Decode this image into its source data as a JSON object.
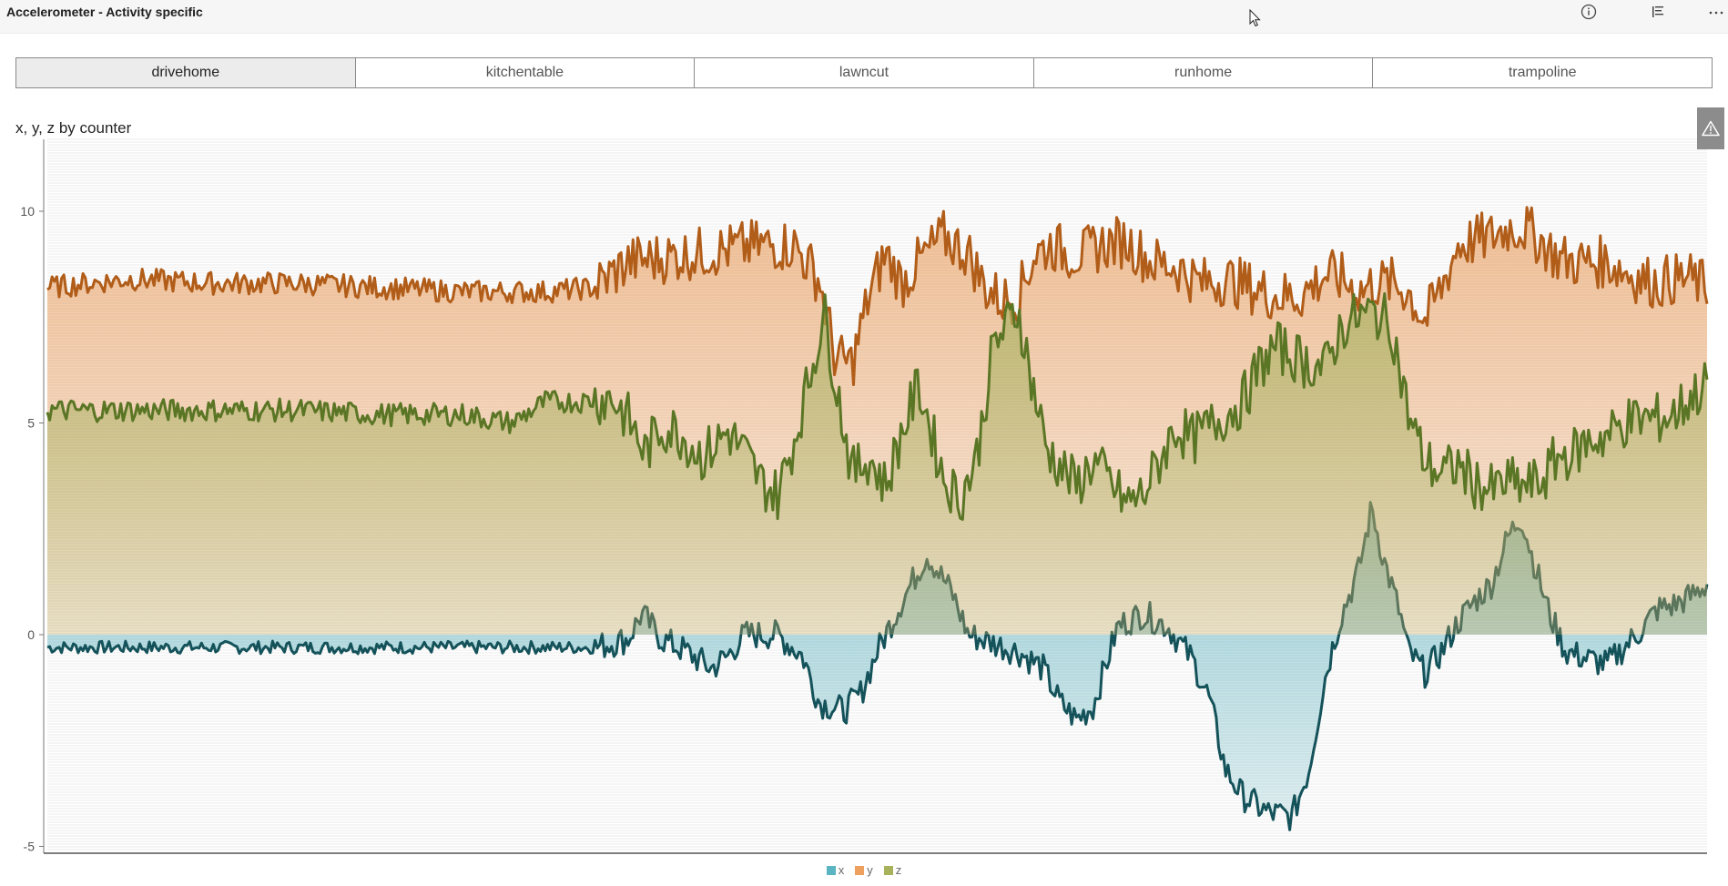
{
  "header": {
    "title": "Accelerometer - Activity specific"
  },
  "slicer": {
    "items": [
      {
        "label": "drivehome",
        "selected": true
      },
      {
        "label": "kitchentable",
        "selected": false
      },
      {
        "label": "lawncut",
        "selected": false
      },
      {
        "label": "runhome",
        "selected": false
      },
      {
        "label": "trampoline",
        "selected": false
      }
    ]
  },
  "icons": {
    "info": "info-icon",
    "list": "list-icon",
    "more": "more-options-icon",
    "warning": "warning-icon"
  },
  "chart_data": {
    "type": "area",
    "title": "x, y, z by counter",
    "xlabel": "",
    "ylabel": "",
    "ylim": [
      -5,
      11.5
    ],
    "yticks": [
      10,
      5,
      0,
      -5
    ],
    "grid": false,
    "legend_position": "bottom-center",
    "x_range": [
      0,
      100
    ],
    "series": [
      {
        "name": "x",
        "color": "#0e4f57",
        "fill_color": "#5ab4c1",
        "points": [
          [
            0,
            -0.3
          ],
          [
            5,
            -0.3
          ],
          [
            10,
            -0.3
          ],
          [
            15,
            -0.3
          ],
          [
            20,
            -0.3
          ],
          [
            25,
            -0.3
          ],
          [
            30,
            -0.3
          ],
          [
            33,
            -0.3
          ],
          [
            35,
            -0.1
          ],
          [
            35.8,
            0.5
          ],
          [
            37,
            -0.1
          ],
          [
            38.5,
            -0.4
          ],
          [
            40,
            -0.8
          ],
          [
            41,
            -0.5
          ],
          [
            42,
            0.0
          ],
          [
            44,
            0.0
          ],
          [
            45.5,
            -0.5
          ],
          [
            46.5,
            -1.6
          ],
          [
            48,
            -1.8
          ],
          [
            49,
            -1.4
          ],
          [
            50,
            -0.4
          ],
          [
            51.5,
            0.8
          ],
          [
            53,
            1.9
          ],
          [
            54.5,
            1.0
          ],
          [
            55.5,
            0.0
          ],
          [
            57,
            -0.2
          ],
          [
            58.5,
            -0.4
          ],
          [
            60,
            -0.8
          ],
          [
            61,
            -1.6
          ],
          [
            62,
            -2.0
          ],
          [
            63,
            -1.7
          ],
          [
            64.5,
            0.2
          ],
          [
            66,
            0.5
          ],
          [
            67.5,
            0.2
          ],
          [
            69,
            -0.6
          ],
          [
            70,
            -1.5
          ],
          [
            71,
            -3.2
          ],
          [
            72,
            -3.8
          ],
          [
            73.5,
            -4.2
          ],
          [
            75,
            -4.3
          ],
          [
            76,
            -3.2
          ],
          [
            77,
            -1.0
          ],
          [
            77.5,
            -0.2
          ],
          [
            78,
            0.5
          ],
          [
            79,
            1.5
          ],
          [
            79.8,
            3.0
          ],
          [
            80.5,
            1.8
          ],
          [
            81.5,
            0.5
          ],
          [
            82,
            -0.4
          ],
          [
            83,
            -0.9
          ],
          [
            84,
            -0.4
          ],
          [
            85,
            0.3
          ],
          [
            86,
            0.8
          ],
          [
            87,
            1.2
          ],
          [
            88,
            2.3
          ],
          [
            88.8,
            2.8
          ],
          [
            89.5,
            1.8
          ],
          [
            90.5,
            0.5
          ],
          [
            91.5,
            -0.4
          ],
          [
            93,
            -0.6
          ],
          [
            94,
            -0.7
          ],
          [
            95,
            -0.3
          ],
          [
            96,
            0.1
          ],
          [
            97,
            0.6
          ],
          [
            98,
            0.7
          ],
          [
            99,
            0.9
          ],
          [
            100,
            1.2
          ]
        ]
      },
      {
        "name": "y",
        "color": "#b35a12",
        "fill_color": "#eea05e",
        "points": [
          [
            0,
            8.2
          ],
          [
            5,
            8.4
          ],
          [
            10,
            8.3
          ],
          [
            15,
            8.3
          ],
          [
            20,
            8.2
          ],
          [
            25,
            8.1
          ],
          [
            30,
            8.1
          ],
          [
            33,
            8.2
          ],
          [
            35,
            8.8
          ],
          [
            37,
            8.9
          ],
          [
            39,
            9.0
          ],
          [
            41,
            9.1
          ],
          [
            43,
            9.2
          ],
          [
            45,
            9.2
          ],
          [
            46.5,
            8.4
          ],
          [
            47.5,
            6.5
          ],
          [
            48.5,
            6.4
          ],
          [
            49.5,
            8.0
          ],
          [
            50.5,
            9.0
          ],
          [
            51.5,
            8.3
          ],
          [
            52.5,
            8.8
          ],
          [
            54,
            9.4
          ],
          [
            55.5,
            9.0
          ],
          [
            56.5,
            8.2
          ],
          [
            57.5,
            7.9
          ],
          [
            58.5,
            8.0
          ],
          [
            59.5,
            9.0
          ],
          [
            60.5,
            9.2
          ],
          [
            61.5,
            9.0
          ],
          [
            62.5,
            9.0
          ],
          [
            63.5,
            9.2
          ],
          [
            65,
            9.3
          ],
          [
            66.5,
            8.8
          ],
          [
            68,
            8.7
          ],
          [
            69.5,
            8.3
          ],
          [
            71,
            8.4
          ],
          [
            72.5,
            8.2
          ],
          [
            74,
            8.0
          ],
          [
            75.5,
            8.0
          ],
          [
            77,
            8.5
          ],
          [
            78,
            8.4
          ],
          [
            79,
            8.1
          ],
          [
            80,
            8.3
          ],
          [
            81,
            8.3
          ],
          [
            82,
            8.1
          ],
          [
            83,
            7.4
          ],
          [
            84,
            8.2
          ],
          [
            85,
            9.2
          ],
          [
            86,
            9.3
          ],
          [
            87,
            9.4
          ],
          [
            88,
            9.6
          ],
          [
            89,
            9.6
          ],
          [
            90,
            9.3
          ],
          [
            91,
            8.9
          ],
          [
            92,
            8.8
          ],
          [
            93,
            8.8
          ],
          [
            94,
            8.8
          ],
          [
            95,
            8.6
          ],
          [
            96,
            8.4
          ],
          [
            97,
            8.3
          ],
          [
            98,
            8.4
          ],
          [
            99,
            8.4
          ],
          [
            100,
            8.2
          ]
        ]
      },
      {
        "name": "z",
        "color": "#57751f",
        "fill_color": "#a7b25a",
        "points": [
          [
            0,
            5.3
          ],
          [
            5,
            5.3
          ],
          [
            10,
            5.3
          ],
          [
            15,
            5.3
          ],
          [
            20,
            5.2
          ],
          [
            25,
            5.2
          ],
          [
            28,
            5.0
          ],
          [
            30,
            5.5
          ],
          [
            32,
            5.5
          ],
          [
            34,
            5.6
          ],
          [
            35,
            5.1
          ],
          [
            36,
            4.3
          ],
          [
            37,
            4.9
          ],
          [
            38,
            4.8
          ],
          [
            39.5,
            4.2
          ],
          [
            41,
            4.8
          ],
          [
            42,
            4.3
          ],
          [
            43,
            3.6
          ],
          [
            44,
            3.3
          ],
          [
            45,
            4.6
          ],
          [
            46,
            6.2
          ],
          [
            46.8,
            7.6
          ],
          [
            47.5,
            6.0
          ],
          [
            48.5,
            3.8
          ],
          [
            49.5,
            4.2
          ],
          [
            50.5,
            3.5
          ],
          [
            51.5,
            4.8
          ],
          [
            52.5,
            5.9
          ],
          [
            53.2,
            4.9
          ],
          [
            54,
            3.7
          ],
          [
            55,
            3.2
          ],
          [
            56,
            4.2
          ],
          [
            57,
            6.8
          ],
          [
            57.8,
            7.3
          ],
          [
            58.5,
            7.7
          ],
          [
            59.3,
            6.0
          ],
          [
            60.2,
            4.4
          ],
          [
            61.2,
            3.9
          ],
          [
            62,
            3.5
          ],
          [
            63,
            4.1
          ],
          [
            64,
            3.6
          ],
          [
            65,
            3.1
          ],
          [
            66,
            3.3
          ],
          [
            67,
            4.1
          ],
          [
            68,
            4.9
          ],
          [
            69,
            4.6
          ],
          [
            70,
            4.9
          ],
          [
            71,
            5.2
          ],
          [
            72,
            5.5
          ],
          [
            73,
            6.3
          ],
          [
            74,
            6.8
          ],
          [
            75,
            6.6
          ],
          [
            76,
            6.4
          ],
          [
            77,
            6.3
          ],
          [
            78,
            7.3
          ],
          [
            79,
            7.5
          ],
          [
            80,
            7.6
          ],
          [
            81,
            7.3
          ],
          [
            82,
            5.2
          ],
          [
            83,
            4.1
          ],
          [
            84,
            3.8
          ],
          [
            85,
            4.0
          ],
          [
            86,
            3.6
          ],
          [
            87,
            3.4
          ],
          [
            88,
            3.6
          ],
          [
            89,
            3.5
          ],
          [
            90,
            3.6
          ],
          [
            91,
            4.2
          ],
          [
            92,
            4.3
          ],
          [
            93,
            4.6
          ],
          [
            94,
            4.7
          ],
          [
            95,
            5.0
          ],
          [
            96,
            5.1
          ],
          [
            97,
            5.1
          ],
          [
            98,
            5.2
          ],
          [
            99,
            5.6
          ],
          [
            100,
            5.9
          ]
        ]
      }
    ],
    "legend": [
      "x",
      "y",
      "z"
    ]
  }
}
